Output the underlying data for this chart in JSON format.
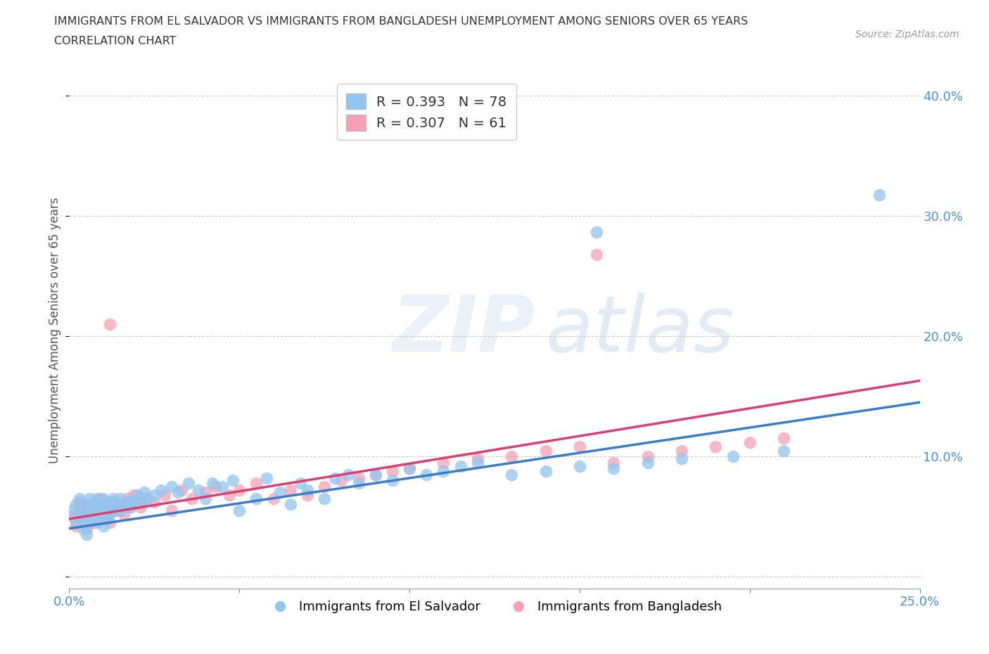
{
  "title_line1": "IMMIGRANTS FROM EL SALVADOR VS IMMIGRANTS FROM BANGLADESH UNEMPLOYMENT AMONG SENIORS OVER 65 YEARS",
  "title_line2": "CORRELATION CHART",
  "source": "Source: ZipAtlas.com",
  "ylabel": "Unemployment Among Seniors over 65 years",
  "x_min": 0.0,
  "x_max": 0.25,
  "y_min": -0.01,
  "y_max": 0.42,
  "blue_color": "#92C5F0",
  "pink_color": "#F5A0B5",
  "blue_line_color": "#3A7EC8",
  "pink_line_color": "#D94070",
  "R_blue": 0.393,
  "N_blue": 78,
  "R_pink": 0.307,
  "N_pink": 61,
  "legend_label_blue": "Immigrants from El Salvador",
  "legend_label_pink": "Immigrants from Bangladesh"
}
